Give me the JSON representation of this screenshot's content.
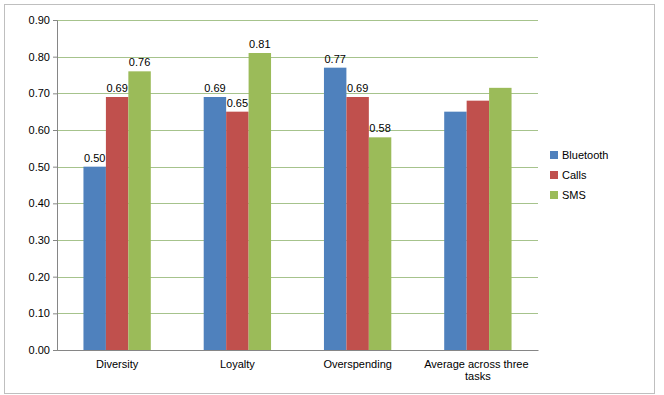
{
  "chart_data": {
    "type": "bar",
    "categories": [
      "Diversity",
      "Loyalty",
      "Overspending",
      "Average across three tasks"
    ],
    "series": [
      {
        "name": "Bluetooth",
        "color": "#4f81bd",
        "values": [
          0.5,
          0.69,
          0.77,
          0.65
        ],
        "value_labels": [
          "0.50",
          "0.69",
          "0.77",
          null
        ]
      },
      {
        "name": "Calls",
        "color": "#c0504d",
        "values": [
          0.69,
          0.65,
          0.69,
          0.68
        ],
        "value_labels": [
          "0.69",
          "0.65",
          "0.69",
          null
        ]
      },
      {
        "name": "SMS",
        "color": "#9bbb59",
        "values": [
          0.76,
          0.81,
          0.58,
          0.715
        ],
        "value_labels": [
          "0.76",
          "0.81",
          "0.58",
          null
        ]
      }
    ],
    "ylim": [
      0,
      0.9
    ],
    "yticks": [
      {
        "value": 0,
        "label": "0.00"
      },
      {
        "value": 0.1,
        "label": "0.10"
      },
      {
        "value": 0.2,
        "label": "0.20"
      },
      {
        "value": 0.3,
        "label": "0.30"
      },
      {
        "value": 0.4,
        "label": "0.40"
      },
      {
        "value": 0.5,
        "label": "0.50"
      },
      {
        "value": 0.6,
        "label": "0.60"
      },
      {
        "value": 0.7,
        "label": "0.70"
      },
      {
        "value": 0.8,
        "label": "0.80"
      },
      {
        "value": 0.9,
        "label": "0.90"
      }
    ],
    "grid": true,
    "data_labels": true,
    "legend": "right"
  }
}
